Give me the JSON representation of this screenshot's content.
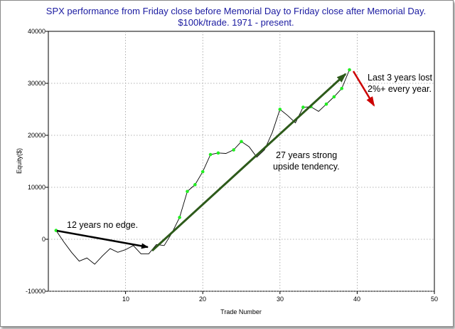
{
  "chart_data": {
    "type": "line",
    "title": "SPX performance from Friday close before Memorial Day to Friday close after Memorial Day.",
    "subtitle": "$100k/trade. 1971 - present.",
    "xlabel": "Trade Number",
    "ylabel": "Equity($)",
    "xlim": [
      0,
      50
    ],
    "ylim": [
      -10000,
      40000
    ],
    "x_ticks": [
      "10",
      "20",
      "30",
      "40",
      "50"
    ],
    "y_ticks": [
      "40000",
      "30000",
      "20000",
      "10000",
      "0",
      "-10000"
    ],
    "grid": true,
    "line_color": "#000000",
    "marker_color": "#22ee22",
    "series": [
      {
        "name": "Equity",
        "x": [
          1,
          2,
          3,
          4,
          5,
          6,
          7,
          8,
          9,
          10,
          11,
          12,
          13,
          14,
          15,
          16,
          17,
          18,
          19,
          20,
          21,
          22,
          23,
          24,
          25,
          26,
          27,
          28,
          29,
          30,
          31,
          32,
          33,
          34,
          35,
          36,
          37,
          38,
          39
        ],
        "values": [
          1700,
          -500,
          -2500,
          -4200,
          -3600,
          -4800,
          -3200,
          -1800,
          -2500,
          -2000,
          -1200,
          -2800,
          -2800,
          -1000,
          -1200,
          1200,
          4200,
          9200,
          10500,
          13000,
          16300,
          16600,
          16500,
          17200,
          18800,
          17800,
          15800,
          17200,
          20500,
          25000,
          23800,
          22400,
          25400,
          25500,
          24600,
          26000,
          27400,
          29000,
          32600
        ],
        "marker_indices": [
          0,
          16,
          17,
          18,
          19,
          20,
          21,
          23,
          24,
          29,
          32,
          33,
          35,
          36,
          37,
          38
        ]
      }
    ],
    "annotations": [
      {
        "text": "12 years no edge.",
        "arrow_color": "#000000"
      },
      {
        "text_lines": [
          "27 years strong",
          "upside tendency."
        ],
        "arrow_color": "#2d5a1a"
      },
      {
        "text_lines": [
          "Last 3 years lost",
          "2%+ every year."
        ],
        "arrow_color": "#cc0000"
      }
    ]
  }
}
